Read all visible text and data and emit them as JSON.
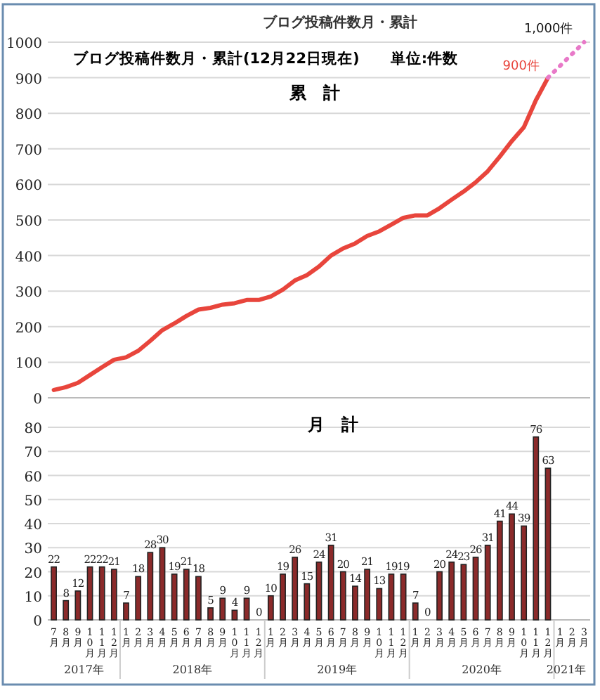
{
  "chart_data": [
    {
      "type": "line",
      "title": "ブログ投稿件数月・累計",
      "subtitle": "ブログ投稿件数月・累計(12月22日現在)　　単位:件数",
      "annotations": [
        "累　計",
        {
          "text": "900件",
          "x": "2020-12",
          "y": 900
        },
        {
          "text": "1,000件",
          "x": "2021-03",
          "y": 1000
        }
      ],
      "x": [
        "2017-07",
        "2017-08",
        "2017-09",
        "2017-10",
        "2017-11",
        "2017-12",
        "2018-01",
        "2018-02",
        "2018-03",
        "2018-04",
        "2018-05",
        "2018-06",
        "2018-07",
        "2018-08",
        "2018-09",
        "2018-10",
        "2018-11",
        "2018-12",
        "2019-01",
        "2019-02",
        "2019-03",
        "2019-04",
        "2019-05",
        "2019-06",
        "2019-07",
        "2019-08",
        "2019-09",
        "2019-10",
        "2019-11",
        "2019-12",
        "2020-01",
        "2020-02",
        "2020-03",
        "2020-04",
        "2020-05",
        "2020-06",
        "2020-07",
        "2020-08",
        "2020-09",
        "2020-10",
        "2020-11",
        "2020-12"
      ],
      "series": [
        {
          "color": "#e8453c",
          "values": [
            22,
            30,
            42,
            64,
            86,
            107,
            114,
            132,
            160,
            190,
            209,
            230,
            248,
            253,
            262,
            266,
            275,
            275,
            285,
            304,
            330,
            345,
            369,
            400,
            420,
            434,
            455,
            468,
            487,
            506,
            513,
            513,
            533,
            557,
            580,
            606,
            637,
            678,
            722,
            761,
            837,
            900
          ]
        },
        {
          "color": "#e879c8",
          "line_style": "dotted",
          "x": [
            "2020-12",
            "2021-03"
          ],
          "values": [
            900,
            1000
          ]
        }
      ],
      "xlim": [
        "2017-06-16",
        "2021-03-16"
      ],
      "ylim": [
        0,
        1000
      ],
      "yticks": [
        0,
        100,
        200,
        300,
        400,
        500,
        600,
        700,
        800,
        900,
        1000
      ],
      "grid": "y",
      "tick_labels": "y"
    },
    {
      "type": "bar",
      "title": "月　計",
      "x": [
        "2017-07",
        "2017-08",
        "2017-09",
        "2017-10",
        "2017-11",
        "2017-12",
        "2018-01",
        "2018-02",
        "2018-03",
        "2018-04",
        "2018-05",
        "2018-06",
        "2018-07",
        "2018-08",
        "2018-09",
        "2018-10",
        "2018-11",
        "2018-12",
        "2019-01",
        "2019-02",
        "2019-03",
        "2019-04",
        "2019-05",
        "2019-06",
        "2019-07",
        "2019-08",
        "2019-09",
        "2019-10",
        "2019-11",
        "2019-12",
        "2020-01",
        "2020-02",
        "2020-03",
        "2020-04",
        "2020-05",
        "2020-06",
        "2020-07",
        "2020-08",
        "2020-09",
        "2020-10",
        "2020-11",
        "2020-12"
      ],
      "values": [
        22,
        8,
        12,
        22,
        22,
        21,
        7,
        18,
        28,
        30,
        19,
        21,
        18,
        5,
        9,
        4,
        9,
        0,
        10,
        19,
        26,
        15,
        24,
        31,
        20,
        14,
        21,
        13,
        19,
        19,
        7,
        0,
        20,
        24,
        23,
        26,
        31,
        41,
        44,
        39,
        76,
        63
      ],
      "color": "#8b2a2a",
      "data_labels": true,
      "xlim": [
        "2017-06-16",
        "2021-03-16"
      ],
      "ylim": [
        0,
        80
      ],
      "yticks": [
        0,
        10,
        20,
        30,
        40,
        50,
        60,
        70,
        80
      ],
      "grid": "y",
      "xticks": [
        {
          "value": "2017-07",
          "label": "7月"
        },
        {
          "value": "2017-08",
          "label": "8月"
        },
        {
          "value": "2017-09",
          "label": "9月"
        },
        {
          "value": "2017-10",
          "label": "10月"
        },
        {
          "value": "2017-11",
          "label": "11月"
        },
        {
          "value": "2017-12",
          "label": "12月"
        },
        {
          "value": "2018-01",
          "label": "1月"
        },
        {
          "value": "2018-02",
          "label": "2月"
        },
        {
          "value": "2018-03",
          "label": "3月"
        },
        {
          "value": "2018-04",
          "label": "4月"
        },
        {
          "value": "2018-05",
          "label": "5月"
        },
        {
          "value": "2018-06",
          "label": "6月"
        },
        {
          "value": "2018-07",
          "label": "7月"
        },
        {
          "value": "2018-08",
          "label": "8月"
        },
        {
          "value": "2018-09",
          "label": "9月"
        },
        {
          "value": "2018-10",
          "label": "10月"
        },
        {
          "value": "2018-11",
          "label": "11月"
        },
        {
          "value": "2018-12",
          "label": "12月"
        },
        {
          "value": "2019-01",
          "label": "1月"
        },
        {
          "value": "2019-02",
          "label": "2月"
        },
        {
          "value": "2019-03",
          "label": "3月"
        },
        {
          "value": "2019-04",
          "label": "4月"
        },
        {
          "value": "2019-05",
          "label": "5月"
        },
        {
          "value": "2019-06",
          "label": "6月"
        },
        {
          "value": "2019-07",
          "label": "7月"
        },
        {
          "value": "2019-08",
          "label": "8月"
        },
        {
          "value": "2019-09",
          "label": "9月"
        },
        {
          "value": "2019-10",
          "label": "10月"
        },
        {
          "value": "2019-11",
          "label": "11月"
        },
        {
          "value": "2019-12",
          "label": "12月"
        },
        {
          "value": "2020-01",
          "label": "1月"
        },
        {
          "value": "2020-02",
          "label": "2月"
        },
        {
          "value": "2020-03",
          "label": "3月"
        },
        {
          "value": "2020-04",
          "label": "4月"
        },
        {
          "value": "2020-05",
          "label": "5月"
        },
        {
          "value": "2020-06",
          "label": "6月"
        },
        {
          "value": "2020-07",
          "label": "7月"
        },
        {
          "value": "2020-08",
          "label": "8月"
        },
        {
          "value": "2020-09",
          "label": "9月"
        },
        {
          "value": "2020-10",
          "label": "10月"
        },
        {
          "value": "2020-11",
          "label": "11月"
        },
        {
          "value": "2020-12",
          "label": "12月"
        },
        {
          "value": "2021-01",
          "label": "1月"
        },
        {
          "value": "2021-02",
          "label": "2月"
        },
        {
          "value": "2021-03",
          "label": "3月"
        }
      ],
      "annotations": [
        "2017年",
        "2018年",
        "2019年",
        "2020年",
        "2021年"
      ]
    }
  ]
}
